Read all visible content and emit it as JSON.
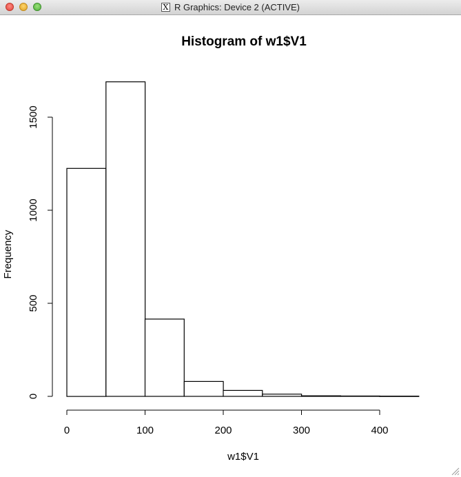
{
  "window": {
    "title": "R Graphics: Device 2 (ACTIVE)",
    "x11_icon_glyph": "X",
    "buttons": [
      "close",
      "minimize",
      "zoom"
    ]
  },
  "chart_data": {
    "type": "bar",
    "title": "Histogram of w1$V1",
    "xlabel": "w1$V1",
    "ylabel": "Frequency",
    "bins": [
      {
        "x0": 0,
        "x1": 50,
        "count": 1225
      },
      {
        "x0": 50,
        "x1": 100,
        "count": 1690
      },
      {
        "x0": 100,
        "x1": 150,
        "count": 415
      },
      {
        "x0": 150,
        "x1": 200,
        "count": 80
      },
      {
        "x0": 200,
        "x1": 250,
        "count": 32
      },
      {
        "x0": 250,
        "x1": 300,
        "count": 12
      },
      {
        "x0": 300,
        "x1": 350,
        "count": 3
      },
      {
        "x0": 350,
        "x1": 400,
        "count": 2
      },
      {
        "x0": 400,
        "x1": 450,
        "count": 1
      }
    ],
    "xticks": [
      0,
      100,
      200,
      300,
      400
    ],
    "yticks": [
      0,
      500,
      1000,
      1500
    ],
    "xlim": [
      0,
      400
    ],
    "ylim": [
      0,
      1500
    ],
    "grid": false,
    "colors": {
      "bar_fill": "#ffffff",
      "bar_stroke": "#000000"
    }
  }
}
